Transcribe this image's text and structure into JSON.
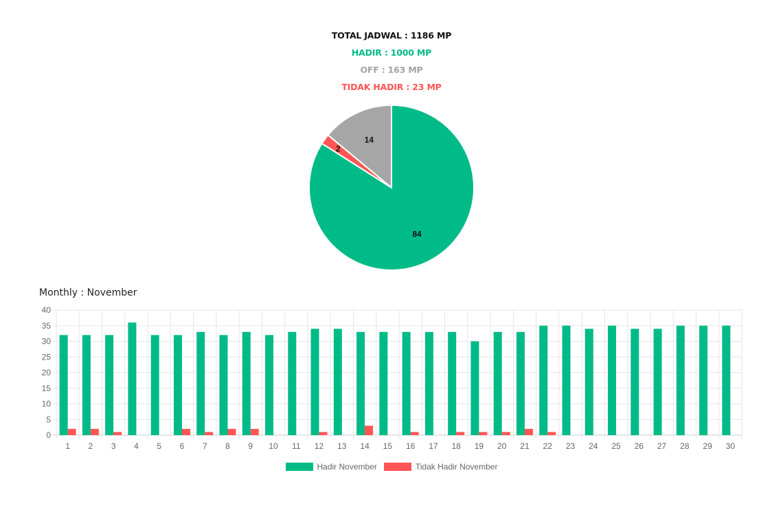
{
  "summary": {
    "total": "TOTAL JADWAL : 1186 MP",
    "hadir": "HADIR : 1000 MP",
    "off": "OFF : 163 MP",
    "tidak_hadir": "TIDAK HADIR : 23 MP"
  },
  "colors": {
    "hadir": "#00bb88",
    "off": "#a6a6a6",
    "tidak_hadir": "#ff5555",
    "total": "#111111"
  },
  "monthly_title": "Monthly : November",
  "chart_data": [
    {
      "type": "pie",
      "slices": [
        {
          "label": "Hadir",
          "value": 84,
          "color": "#00bb88"
        },
        {
          "label": "Tidak Hadir",
          "value": 2,
          "color": "#ff5555"
        },
        {
          "label": "Off",
          "value": 14,
          "color": "#a6a6a6"
        }
      ],
      "data_labels": [
        "84",
        "2",
        "14"
      ]
    },
    {
      "type": "bar",
      "categories": [
        "1",
        "2",
        "3",
        "4",
        "5",
        "6",
        "7",
        "8",
        "9",
        "10",
        "11",
        "12",
        "13",
        "14",
        "15",
        "16",
        "17",
        "18",
        "19",
        "20",
        "21",
        "22",
        "23",
        "24",
        "25",
        "26",
        "27",
        "28",
        "29",
        "30"
      ],
      "series": [
        {
          "name": "Hadir November",
          "color": "#00bb88",
          "values": [
            32,
            32,
            32,
            36,
            32,
            32,
            33,
            32,
            33,
            32,
            33,
            34,
            34,
            33,
            33,
            33,
            33,
            33,
            30,
            33,
            33,
            35,
            35,
            34,
            35,
            34,
            34,
            35,
            35,
            35
          ]
        },
        {
          "name": "Tidak Hadir November",
          "color": "#ff5555",
          "values": [
            2,
            2,
            1,
            0,
            0,
            2,
            1,
            2,
            2,
            0,
            0,
            1,
            0,
            3,
            0,
            1,
            0,
            1,
            1,
            1,
            2,
            1,
            0,
            0,
            0,
            0,
            0,
            0,
            0,
            0
          ]
        }
      ],
      "ylim": [
        0,
        40
      ],
      "yticks": [
        0,
        5,
        10,
        15,
        20,
        25,
        30,
        35,
        40
      ],
      "grid": true,
      "legend": "bottom"
    }
  ]
}
